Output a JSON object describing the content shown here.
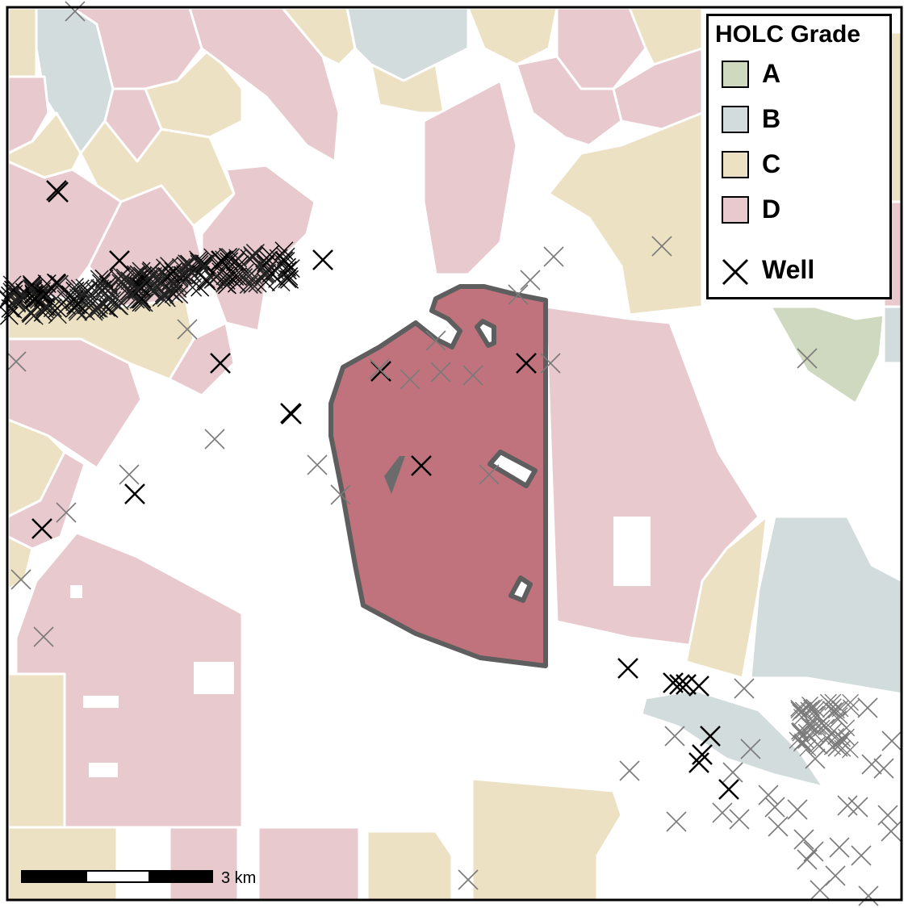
{
  "legend": {
    "title": "HOLC Grade",
    "grades": [
      {
        "label": "A",
        "color": "#cfd9bf"
      },
      {
        "label": "B",
        "color": "#d3dcdc"
      },
      {
        "label": "C",
        "color": "#ede1c4"
      },
      {
        "label": "D",
        "color": "#e8c9ce"
      }
    ],
    "well_label": "Well"
  },
  "scale_bar": {
    "label": "3 km"
  },
  "colors": {
    "grade_A": "#cfd9bf",
    "grade_B": "#d3dcdc",
    "grade_C": "#ede1c4",
    "grade_D": "#e8c9ce",
    "highlight_fill": "#c0737c",
    "highlight_outline": "#5e5e5e",
    "well_dark": "#000000",
    "well_light": "#7a7a7a"
  }
}
